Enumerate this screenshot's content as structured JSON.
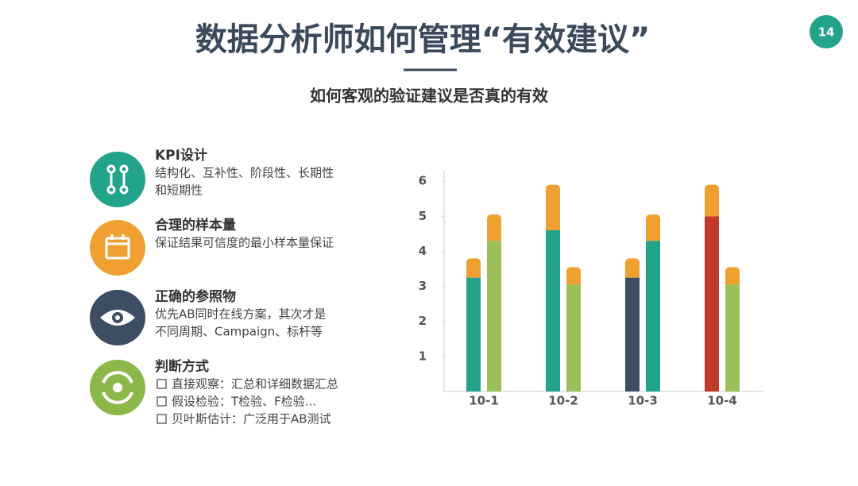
{
  "header": {
    "title": "数据分析师如何管理“有效建议”",
    "page_number": "14",
    "subtitle": "如何客观的验证建议是否真的有效"
  },
  "items": [
    {
      "title": "KPI设计",
      "lines": [
        "结构化、互补性、阶段性、长期性",
        "和短期性"
      ]
    },
    {
      "title": "合理的样本量",
      "lines": [
        "保证结果可信度的最小样本量保证"
      ]
    },
    {
      "title": "正确的参照物",
      "lines": [
        "优先AB同时在线方案，其次才是",
        "不同周期、Campaign、标杆等"
      ]
    },
    {
      "title": "判断方式",
      "lines": [
        "直接观察：汇总和详细数据汇总",
        "假设检验：T检验、F检验...",
        "贝叶斯估计：广泛用于AB测试"
      ]
    }
  ],
  "chart_data": {
    "type": "stacked-bar",
    "categories": [
      "10-1",
      "10-2",
      "10-3",
      "10-4"
    ],
    "bars": [
      {
        "segments": [
          {
            "colors": [
              "#22a38a",
              "#22a38a",
              "#3d4d63",
              "#c0392b"
            ],
            "values": [
              3.25,
              4.6,
              3.25,
              5.0
            ]
          },
          {
            "color": "#f0a030",
            "values": [
              0.55,
              1.3,
              0.55,
              0.9
            ]
          }
        ]
      },
      {
        "segments": [
          {
            "colors": [
              "#9bbf5a",
              "#9bbf5a",
              "#22a38a",
              "#9bbf5a"
            ],
            "values": [
              4.3,
              3.05,
              4.3,
              3.05
            ]
          },
          {
            "color": "#f0a030",
            "values": [
              0.75,
              0.5,
              0.75,
              0.5
            ]
          }
        ]
      }
    ],
    "ylim": [
      0,
      6.3
    ],
    "yticks": [
      1,
      2,
      3,
      4,
      5,
      6
    ],
    "grid": false
  }
}
